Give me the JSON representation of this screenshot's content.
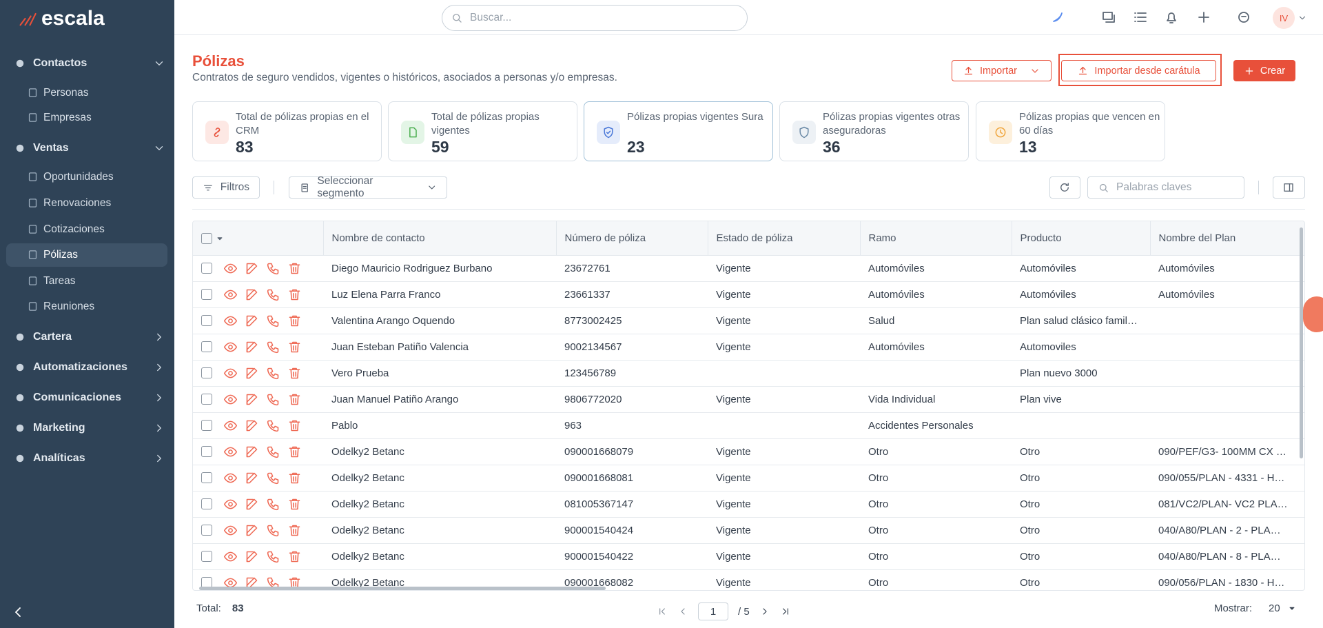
{
  "brand": "escala",
  "topbar": {
    "search_placeholder": "Buscar...",
    "avatar": "IV"
  },
  "sidebar": {
    "groups": [
      {
        "label": "Contactos",
        "items": [
          "Personas",
          "Empresas"
        ]
      },
      {
        "label": "Ventas",
        "items": [
          "Oportunidades",
          "Renovaciones",
          "Cotizaciones",
          "Pólizas",
          "Tareas",
          "Reuniones"
        ]
      },
      {
        "label": "Cartera"
      },
      {
        "label": "Automatizaciones"
      },
      {
        "label": "Comunicaciones"
      },
      {
        "label": "Marketing"
      },
      {
        "label": "Analíticas"
      }
    ]
  },
  "page": {
    "title": "Pólizas",
    "subtitle": "Contratos de seguro vendidos, vigentes o históricos, asociados a personas y/o empresas.",
    "buttons": {
      "import": "Importar",
      "import_cover": "Importar desde carátula",
      "create": "Crear"
    }
  },
  "stats": [
    {
      "label": "Total de pólizas propias en el CRM",
      "value": 83
    },
    {
      "label": "Total de pólizas propias vigentes",
      "value": 59
    },
    {
      "label": "Pólizas propias vigentes Sura",
      "value": 23
    },
    {
      "label": "Pólizas propias vigentes otras aseguradoras",
      "value": 36
    },
    {
      "label": "Pólizas propias que vencen en 60 días",
      "value": 13
    }
  ],
  "toolbar": {
    "filters": "Filtros",
    "segment": "Seleccionar segmento",
    "keywords_placeholder": "Palabras claves"
  },
  "table": {
    "columns": [
      "Nombre de contacto",
      "Número de póliza",
      "Estado de póliza",
      "Ramo",
      "Producto",
      "Nombre del Plan"
    ],
    "rows": [
      [
        "Diego Mauricio Rodriguez Burbano",
        "23672761",
        "Vigente",
        "Automóviles",
        "Automóviles",
        "Automóviles"
      ],
      [
        "Luz Elena Parra Franco",
        "23661337",
        "Vigente",
        "Automóviles",
        "Automóviles",
        "Automóviles"
      ],
      [
        "Valentina Arango Oquendo",
        "8773002425",
        "Vigente",
        "Salud",
        "Plan salud clásico famil…",
        null
      ],
      [
        "Juan Esteban Patiño Valencia",
        "9002134567",
        "Vigente",
        "Automóviles",
        "Automoviles",
        null
      ],
      [
        "Vero Prueba",
        "123456789",
        null,
        null,
        "Plan nuevo 3000",
        null
      ],
      [
        "Juan Manuel Patiño Arango",
        "9806772020",
        "Vigente",
        "Vida Individual",
        "Plan vive",
        null
      ],
      [
        "Pablo",
        "963",
        null,
        "Accidentes Personales",
        null,
        null
      ],
      [
        "Odelky2 Betanc",
        "090001668079",
        "Vigente",
        "Otro",
        "Otro",
        "090/PEF/G3- 100MM CX …"
      ],
      [
        "Odelky2 Betanc",
        "090001668081",
        "Vigente",
        "Otro",
        "Otro",
        "090/055/PLAN - 4331 - H…"
      ],
      [
        "Odelky2 Betanc",
        "081005367147",
        "Vigente",
        "Otro",
        "Otro",
        "081/VC2/PLAN- VC2 PLA…"
      ],
      [
        "Odelky2 Betanc",
        "900001540424",
        "Vigente",
        "Otro",
        "Otro",
        "040/A80/PLAN - 2 - PLA…"
      ],
      [
        "Odelky2 Betanc",
        "900001540422",
        "Vigente",
        "Otro",
        "Otro",
        "040/A80/PLAN - 8 - PLA…"
      ],
      [
        "Odelky2 Betanc",
        "090001668082",
        "Vigente",
        "Otro",
        "Otro",
        "090/056/PLAN - 1830 - H…"
      ]
    ]
  },
  "footer": {
    "total_label": "Total:",
    "total": 83,
    "page": 1,
    "pages": "/ 5",
    "show_label": "Mostrar:",
    "show": 20
  }
}
